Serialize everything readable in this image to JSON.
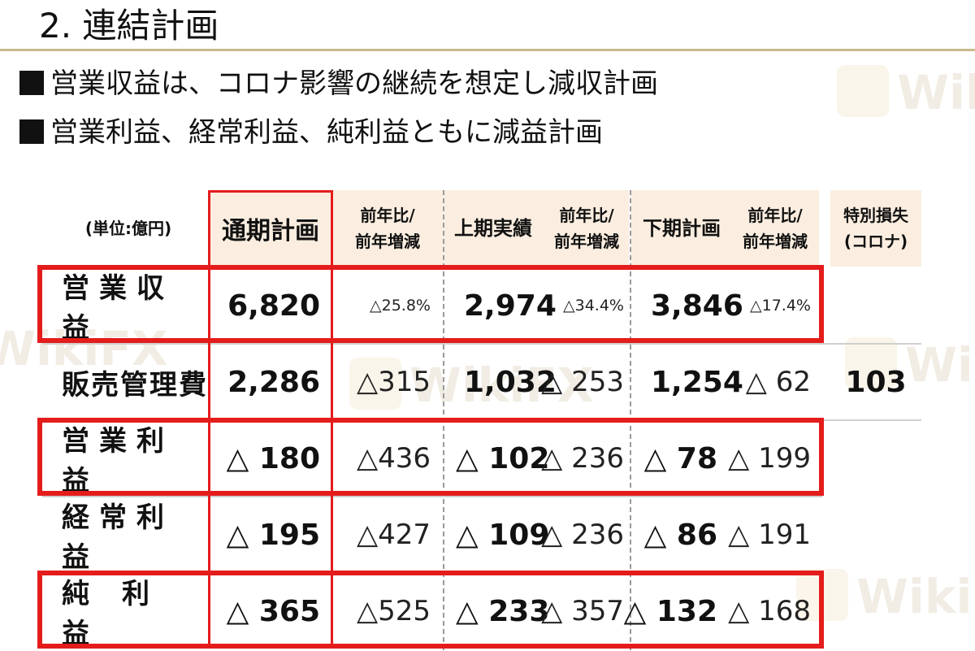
{
  "title": "2. 連結計画",
  "bullets": [
    "営業収益は、コロナ影響の継続を想定し減収計画",
    "営業利益、経常利益、純利益ともに減益計画"
  ],
  "watermark": "WikiFX",
  "table": {
    "unit": "(単位:億円)",
    "headers": {
      "plan_full": "通期計画",
      "yoy1": "前年比/\n前年増減",
      "h1_actual": "上期実績",
      "yoy2": "前年比/\n前年増減",
      "h2_plan": "下期計画",
      "yoy3": "前年比/\n前年増減",
      "special": "特別損失\n(コロナ)"
    },
    "rows": [
      {
        "label": "営業収益",
        "plan": "6,820",
        "yoy1": "△25.8%",
        "h1": "2,974",
        "yoy2": "△34.4%",
        "h2": "3,846",
        "yoy3": "△17.4%",
        "special": ""
      },
      {
        "label": "販売管理費",
        "plan": "2,286",
        "yoy1": "△315",
        "h1": "1,032",
        "yoy2": "△ 253",
        "h2": "1,254",
        "yoy3": "△ 62",
        "special": "103"
      },
      {
        "label": "営業利益",
        "plan": "△ 180",
        "yoy1": "△436",
        "h1": "△ 102",
        "yoy2": "△ 236",
        "h2": "△ 78",
        "yoy3": "△ 199",
        "special": ""
      },
      {
        "label": "経常利益",
        "plan": "△ 195",
        "yoy1": "△427",
        "h1": "△ 109",
        "yoy2": "△ 236",
        "h2": "△ 86",
        "yoy3": "△ 191",
        "special": ""
      },
      {
        "label": "純利益",
        "plan": "△ 365",
        "yoy1": "△525",
        "h1": "△ 233",
        "yoy2": "△ 357",
        "h2": "△ 132",
        "yoy3": "△ 168",
        "special": ""
      }
    ]
  },
  "colors": {
    "highlight": "#e41c1c",
    "header_bg": "#fbeee0",
    "rule": "#c9b98c"
  }
}
